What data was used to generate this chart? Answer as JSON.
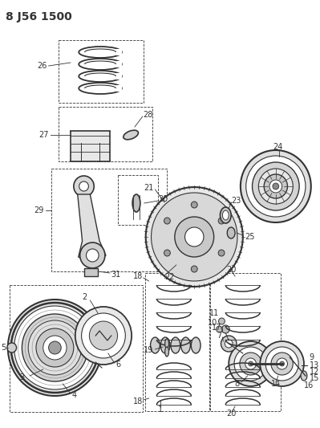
{
  "title": "8 J56 1500",
  "title_fontsize": 10,
  "title_fontweight": "bold",
  "bg_color": "#ffffff",
  "line_color": "#333333",
  "label_fontsize": 7.0
}
